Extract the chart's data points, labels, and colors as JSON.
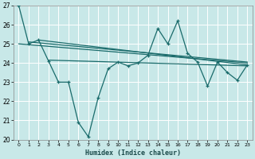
{
  "xlabel": "Humidex (Indice chaleur)",
  "bg_color": "#c8e8e8",
  "grid_color": "#b0d8d8",
  "line_color": "#1a6b6b",
  "xlim": [
    -0.5,
    23.5
  ],
  "ylim": [
    20,
    27
  ],
  "yticks": [
    20,
    21,
    22,
    23,
    24,
    25,
    26,
    27
  ],
  "xticks": [
    0,
    1,
    2,
    3,
    4,
    5,
    6,
    7,
    8,
    9,
    10,
    11,
    12,
    13,
    14,
    15,
    16,
    17,
    18,
    19,
    20,
    21,
    22,
    23
  ],
  "series1_x": [
    0,
    1,
    2,
    3,
    4,
    5,
    6,
    7,
    8,
    9,
    10,
    11,
    12,
    13,
    14,
    15,
    16,
    17,
    18,
    19,
    20,
    21,
    22,
    23
  ],
  "series1_y": [
    27.0,
    25.0,
    25.2,
    24.1,
    23.0,
    23.0,
    20.9,
    20.15,
    22.2,
    23.7,
    24.05,
    23.85,
    24.0,
    24.4,
    25.8,
    25.0,
    26.2,
    24.5,
    24.05,
    22.8,
    24.05,
    23.5,
    23.1,
    23.9
  ],
  "trend1_x": [
    0,
    23
  ],
  "trend1_y": [
    25.0,
    24.0
  ],
  "trend2_x": [
    1,
    23
  ],
  "trend2_y": [
    25.1,
    24.05
  ],
  "trend3_x": [
    2,
    23
  ],
  "trend3_y": [
    25.2,
    23.9
  ],
  "trend4_x": [
    3,
    23
  ],
  "trend4_y": [
    24.15,
    23.85
  ]
}
